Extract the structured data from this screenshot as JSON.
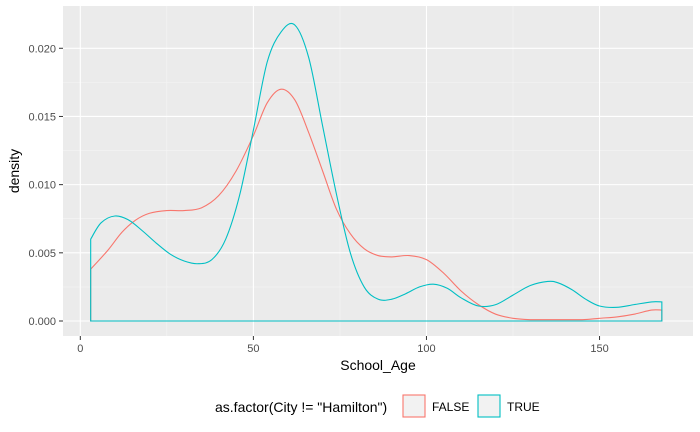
{
  "chart_data": {
    "type": "area",
    "xlabel": "School_Age",
    "ylabel": "density",
    "xlim": [
      -5,
      177
    ],
    "ylim": [
      -0.0011,
      0.0231
    ],
    "x_ticks": [
      0,
      50,
      100,
      150
    ],
    "x_tick_labels": [
      "0",
      "50",
      "100",
      "150"
    ],
    "y_ticks": [
      0.0,
      0.005,
      0.01,
      0.015,
      0.02
    ],
    "y_tick_labels": [
      "0.000",
      "0.005",
      "0.010",
      "0.015",
      "0.020"
    ],
    "grid": true,
    "legend_position": "bottom",
    "legend_title": "as.factor(City != \"Hamilton\")",
    "series": [
      {
        "name": "FALSE",
        "color": "#F8766D",
        "x": [
          3,
          8,
          12,
          16,
          20,
          25,
          30,
          35,
          40,
          45,
          50,
          54,
          58,
          62,
          66,
          70,
          74,
          78,
          82,
          86,
          90,
          95,
          100,
          105,
          110,
          115,
          120,
          125,
          130,
          135,
          140,
          145,
          150,
          155,
          160,
          165,
          168
        ],
        "y": [
          0.0038,
          0.0052,
          0.0065,
          0.0074,
          0.0079,
          0.0081,
          0.0081,
          0.0083,
          0.0092,
          0.011,
          0.0136,
          0.016,
          0.017,
          0.0162,
          0.0138,
          0.011,
          0.0082,
          0.0064,
          0.0053,
          0.0048,
          0.0047,
          0.0048,
          0.0045,
          0.0035,
          0.0022,
          0.0012,
          0.0005,
          0.0002,
          0.0001,
          0.0001,
          0.0001,
          0.0001,
          0.0002,
          0.0003,
          0.0005,
          0.0008,
          0.0008
        ]
      },
      {
        "name": "TRUE",
        "color": "#00BFC4",
        "x": [
          3,
          6,
          10,
          14,
          18,
          22,
          26,
          30,
          34,
          38,
          42,
          46,
          50,
          54,
          58,
          62,
          66,
          70,
          74,
          78,
          82,
          86,
          90,
          94,
          98,
          102,
          106,
          110,
          115,
          120,
          125,
          130,
          135,
          138,
          142,
          146,
          150,
          155,
          160,
          165,
          168
        ],
        "y": [
          0.006,
          0.0072,
          0.0077,
          0.0074,
          0.0066,
          0.0057,
          0.0049,
          0.0044,
          0.0042,
          0.0045,
          0.006,
          0.0092,
          0.014,
          0.019,
          0.0212,
          0.0217,
          0.0193,
          0.0143,
          0.0093,
          0.005,
          0.0025,
          0.0016,
          0.0016,
          0.002,
          0.0025,
          0.0027,
          0.0024,
          0.0017,
          0.0011,
          0.0012,
          0.0019,
          0.0026,
          0.0029,
          0.0028,
          0.0023,
          0.0016,
          0.0011,
          0.001,
          0.0012,
          0.0014,
          0.0014
        ]
      }
    ]
  }
}
